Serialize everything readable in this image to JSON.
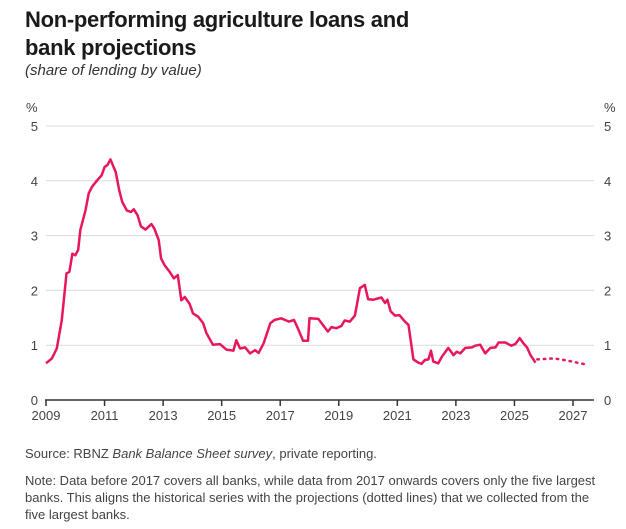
{
  "title": "Non-performing agriculture loans and bank projections",
  "subtitle": "(share of lending by value)",
  "source_prefix": "Source: RBNZ ",
  "source_italic": "Bank Balance Sheet survey",
  "source_suffix": ", private reporting.",
  "note": "Note: Data before 2017 covers all banks, while data from 2017 onwards covers only the five largest banks. This aligns the historical series with the projections (dotted lines) that we collected from the five largest banks.",
  "chart_data": {
    "type": "line",
    "title": "Non-performing agriculture loans and bank projections",
    "ylabel_left": "%",
    "ylabel_right": "%",
    "xlim": [
      2009,
      2027.7
    ],
    "ylim": [
      0,
      5
    ],
    "x_ticks": [
      "2009",
      "2011",
      "2013",
      "2015",
      "2017",
      "2019",
      "2021",
      "2023",
      "2025",
      "2027"
    ],
    "y_ticks": [
      "0",
      "1",
      "2",
      "3",
      "4",
      "5"
    ],
    "grid": true,
    "color": "#e8175d",
    "series": [
      {
        "style": "solid",
        "x": [
          2009.0,
          2009.2,
          2009.37,
          2009.54,
          2009.7,
          2009.8,
          2009.9,
          2010.0,
          2010.1,
          2010.17,
          2010.35,
          2010.46,
          2010.57,
          2010.75,
          2010.9,
          2011.0,
          2011.1,
          2011.2,
          2011.38,
          2011.5,
          2011.6,
          2011.76,
          2011.9,
          2012.0,
          2012.13,
          2012.24,
          2012.4,
          2012.6,
          2012.7,
          2012.85,
          2012.93,
          2013.05,
          2013.22,
          2013.37,
          2013.5,
          2013.62,
          2013.74,
          2013.9,
          2014.02,
          2014.2,
          2014.37,
          2014.48,
          2014.7,
          2014.94,
          2015.16,
          2015.4,
          2015.5,
          2015.63,
          2015.8,
          2015.97,
          2016.14,
          2016.26,
          2016.43,
          2016.66,
          2016.8,
          2017.03,
          2017.3,
          2017.47,
          2017.6,
          2017.78,
          2017.95,
          2018.0,
          2018.3,
          2018.63,
          2018.75,
          2018.92,
          2019.09,
          2019.2,
          2019.38,
          2019.55,
          2019.72,
          2019.89,
          2020.0,
          2020.18,
          2020.46,
          2020.58,
          2020.66,
          2020.77,
          2020.92,
          2021.07,
          2021.26,
          2021.38,
          2021.55,
          2021.72,
          2021.83,
          2021.94,
          2022.06,
          2022.15,
          2022.23,
          2022.4,
          2022.51,
          2022.74,
          2022.92,
          2023.03,
          2023.15,
          2023.32,
          2023.55,
          2023.66,
          2023.83,
          2024.0,
          2024.18,
          2024.35,
          2024.46,
          2024.69,
          2024.89,
          2025.03,
          2025.18,
          2025.3,
          2025.43,
          2025.55,
          2025.72
        ],
        "y": [
          0.67,
          0.76,
          0.94,
          1.46,
          2.31,
          2.34,
          2.67,
          2.64,
          2.74,
          3.1,
          3.46,
          3.77,
          3.89,
          4.01,
          4.1,
          4.25,
          4.29,
          4.39,
          4.16,
          3.83,
          3.62,
          3.46,
          3.43,
          3.48,
          3.37,
          3.17,
          3.11,
          3.21,
          3.13,
          2.92,
          2.58,
          2.46,
          2.34,
          2.22,
          2.28,
          1.82,
          1.88,
          1.76,
          1.58,
          1.52,
          1.4,
          1.22,
          1.01,
          1.02,
          0.92,
          0.9,
          1.09,
          0.94,
          0.96,
          0.85,
          0.91,
          0.86,
          1.03,
          1.4,
          1.46,
          1.49,
          1.43,
          1.46,
          1.31,
          1.08,
          1.08,
          1.49,
          1.48,
          1.25,
          1.33,
          1.31,
          1.35,
          1.45,
          1.43,
          1.54,
          2.04,
          2.1,
          1.84,
          1.83,
          1.87,
          1.77,
          1.83,
          1.62,
          1.54,
          1.55,
          1.43,
          1.37,
          0.74,
          0.68,
          0.66,
          0.73,
          0.74,
          0.9,
          0.7,
          0.67,
          0.78,
          0.95,
          0.82,
          0.88,
          0.85,
          0.95,
          0.96,
          0.99,
          1.01,
          0.85,
          0.95,
          0.96,
          1.05,
          1.05,
          0.99,
          1.02,
          1.13,
          1.04,
          0.96,
          0.82,
          0.68
        ]
      },
      {
        "style": "dotted",
        "x": [
          2025.78,
          2026.35,
          2026.8,
          2027.43
        ],
        "y": [
          0.74,
          0.76,
          0.72,
          0.65
        ]
      }
    ]
  }
}
